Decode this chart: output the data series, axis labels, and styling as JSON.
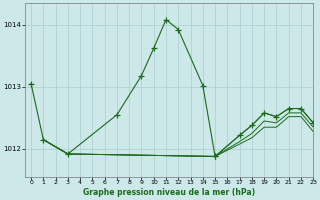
{
  "title": "Graphe pression niveau de la mer (hPa)",
  "background_color": "#cce8e8",
  "grid_color": "#aacece",
  "line_color": "#1a6b1a",
  "xlim": [
    -0.5,
    23
  ],
  "ylim": [
    1011.55,
    1014.35
  ],
  "yticks": [
    1012,
    1013,
    1014
  ],
  "xticks": [
    0,
    1,
    2,
    3,
    4,
    5,
    6,
    7,
    8,
    9,
    10,
    11,
    12,
    13,
    14,
    15,
    16,
    17,
    18,
    19,
    20,
    21,
    22,
    23
  ],
  "curve_main": {
    "x": [
      0,
      1,
      3,
      7,
      9,
      10,
      11,
      12,
      14,
      15
    ],
    "y": [
      1013.05,
      1012.15,
      1011.92,
      1012.55,
      1013.18,
      1013.62,
      1014.08,
      1013.92,
      1013.02,
      1011.88
    ]
  },
  "curve_right": {
    "x": [
      15,
      17,
      18,
      19,
      20,
      21,
      22,
      23
    ],
    "y": [
      1011.88,
      1012.22,
      1012.38,
      1012.58,
      1012.52,
      1012.65,
      1012.65,
      1012.42
    ]
  },
  "curve_flat1": {
    "x": [
      1,
      3,
      15,
      16,
      17,
      18,
      19,
      20,
      21,
      22,
      23
    ],
    "y": [
      1012.15,
      1011.92,
      1011.88,
      1012.05,
      1012.22,
      1012.38,
      1012.58,
      1012.52,
      1012.65,
      1012.65,
      1012.42
    ]
  },
  "curve_flat2": {
    "x": [
      1,
      3,
      15,
      16,
      17,
      18,
      19,
      20,
      21,
      22,
      23
    ],
    "y": [
      1012.15,
      1011.92,
      1011.88,
      1012.0,
      1012.12,
      1012.25,
      1012.45,
      1012.42,
      1012.58,
      1012.58,
      1012.35
    ]
  },
  "curve_flat3": {
    "x": [
      1,
      3,
      15,
      16,
      17,
      18,
      19,
      20,
      21,
      22,
      23
    ],
    "y": [
      1012.15,
      1011.92,
      1011.88,
      1011.98,
      1012.08,
      1012.18,
      1012.35,
      1012.35,
      1012.52,
      1012.52,
      1012.28
    ]
  }
}
